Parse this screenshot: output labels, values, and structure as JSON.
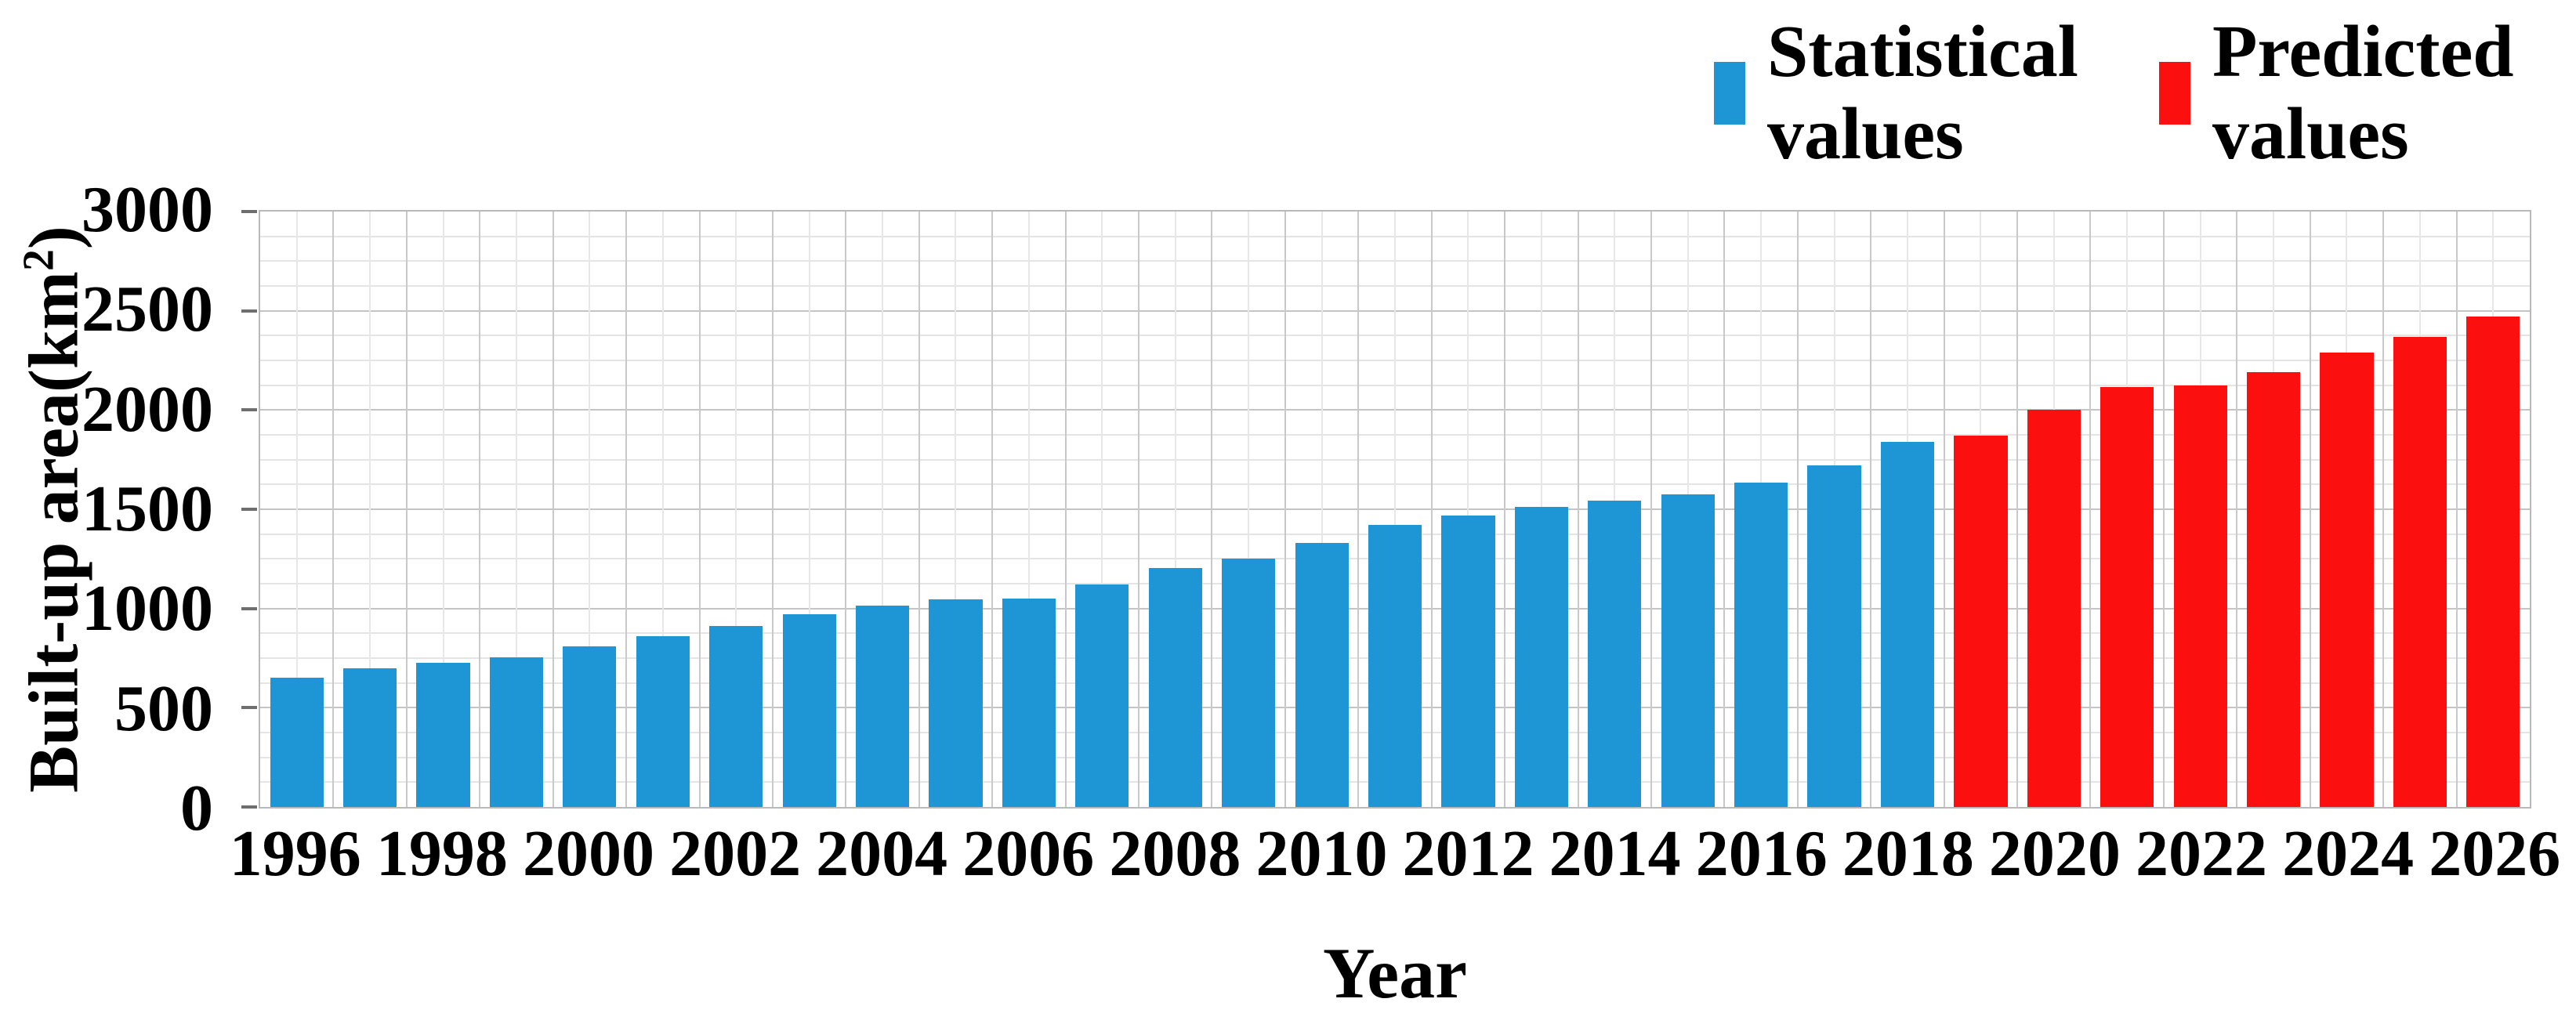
{
  "legend": {
    "items": [
      {
        "label": "Statistical values",
        "color": "#1e95d4"
      },
      {
        "label": "Predicted values",
        "color": "#fb0f0f"
      }
    ]
  },
  "chart_data": {
    "type": "bar",
    "title": "",
    "xlabel": "Year",
    "ylabel": "Built-up area(km²)",
    "ylabel_parts": {
      "prefix": "Built-up area(km",
      "sup": "2",
      "suffix": ")"
    },
    "categories": [
      "1996",
      "1997",
      "1998",
      "1999",
      "2000",
      "2001",
      "2002",
      "2003",
      "2004",
      "2005",
      "2006",
      "2007",
      "2008",
      "2009",
      "2010",
      "2011",
      "2012",
      "2013",
      "2014",
      "2015",
      "2016",
      "2017",
      "2018",
      "2019",
      "2020",
      "2021",
      "2022",
      "2023",
      "2024",
      "2025",
      "2026"
    ],
    "series": [
      {
        "name": "Statistical values",
        "color": "#1e95d4",
        "values": [
          650,
          700,
          725,
          755,
          810,
          860,
          910,
          970,
          1015,
          1045,
          1050,
          1120,
          1205,
          1250,
          1330,
          1420,
          1470,
          1510,
          1545,
          1575,
          1635,
          1720,
          1840
        ]
      },
      {
        "name": "Predicted values",
        "color": "#fb0f0f",
        "values": [
          1870,
          2000,
          2115,
          2125,
          2190,
          2290,
          2370,
          2470
        ]
      }
    ],
    "ylim": [
      0,
      3000
    ],
    "y_major_step": 500,
    "y_minor_step": 125,
    "y_tick_labels": [
      "0",
      "500",
      "1000",
      "1500",
      "2000",
      "2500",
      "3000"
    ],
    "x_tick_label_every": 2,
    "grid": true,
    "legend_position": "top-right"
  }
}
